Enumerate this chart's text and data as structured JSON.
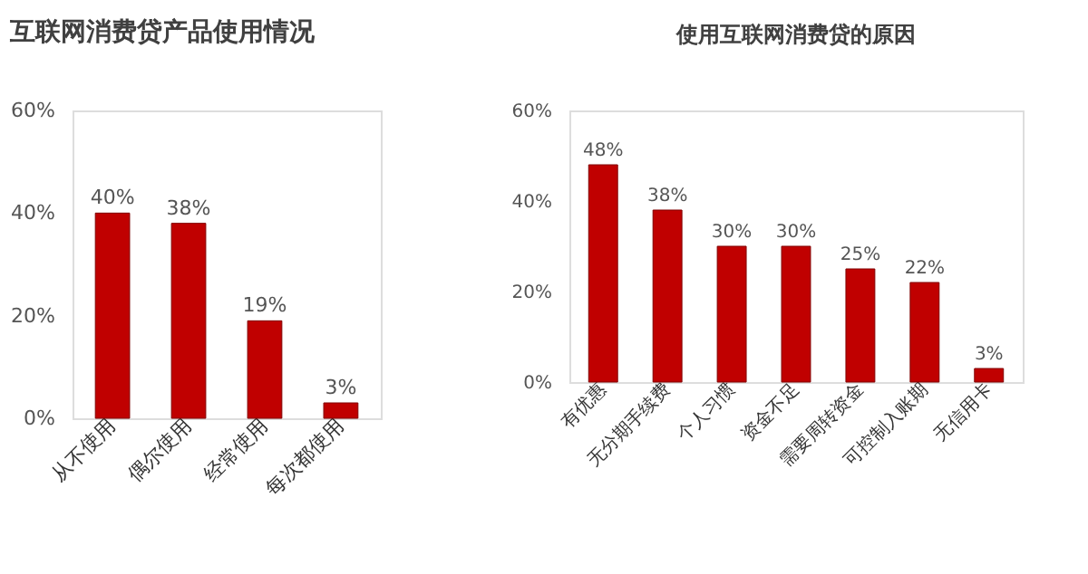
{
  "chart_data": [
    {
      "type": "bar",
      "title": "互联网消费贷产品使用情况",
      "categories": [
        "从不使用",
        "偶尔使用",
        "经常使用",
        "每次都使用"
      ],
      "values": [
        40,
        38,
        19,
        3
      ],
      "color": "#c00000",
      "value_labels": [
        "40%",
        "38%",
        "19%",
        "3%"
      ],
      "ylim": [
        0,
        60
      ],
      "yticks": [
        {
          "value": 0,
          "label": "0%"
        },
        {
          "value": 20,
          "label": "20%"
        },
        {
          "value": 40,
          "label": "40%"
        },
        {
          "value": 60,
          "label": "60%"
        }
      ],
      "grid": false
    },
    {
      "type": "bar",
      "title": "使用互联网消费贷的原因",
      "categories": [
        "有优惠",
        "无分期手续费",
        "个人习惯",
        "资金不足",
        "需要周转资金",
        "可控制入账期",
        "无信用卡"
      ],
      "values": [
        48,
        38,
        30,
        30,
        25,
        22,
        3
      ],
      "color": "#c00000",
      "value_labels": [
        "48%",
        "38%",
        "30%",
        "30%",
        "25%",
        "22%",
        "3%"
      ],
      "ylim": [
        0,
        60
      ],
      "yticks": [
        {
          "value": 0,
          "label": "0%"
        },
        {
          "value": 20,
          "label": "20%"
        },
        {
          "value": 40,
          "label": "40%"
        },
        {
          "value": 60,
          "label": "60%"
        }
      ],
      "grid": false
    }
  ]
}
